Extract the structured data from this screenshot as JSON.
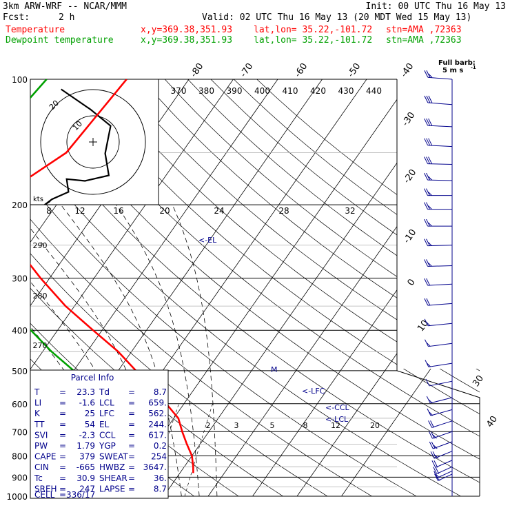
{
  "header": {
    "model": "3km ARW-WRF -- NCAR/MMM",
    "init": "Init: 00 UTC Thu 16 May 13",
    "fcst_label": "Fcst:",
    "fcst_value": "2 h",
    "valid": "Valid: 02 UTC Thu 16 May 13 (20 MDT Wed 15 May 13)",
    "temp_line": {
      "name": "Temperature",
      "xy": "x,y=369.38,351.93",
      "latlon": "lat,lon= 35.22,-101.72",
      "stn": "stn=AMA ,72363"
    },
    "dew_line": {
      "name": "Dewpoint temperature",
      "xy": "x,y=369.38,351.93",
      "latlon": "lat,lon= 35.22,-101.72",
      "stn": "stn=AMA ,72363"
    },
    "barb_note_1": "Full barb:",
    "barb_note_2": "5 m s",
    "barb_note_sup": "-1"
  },
  "colors": {
    "temperature": "#ff0000",
    "dewpoint": "#00a000",
    "parcel": "#00008b",
    "isobar": "#000000",
    "grid_gray": "#b0b0b0"
  },
  "chart_data": {
    "type": "line",
    "diagram": "skew-T log-p",
    "pressure_levels": [
      100,
      200,
      300,
      400,
      500,
      600,
      700,
      800,
      900,
      1000
    ],
    "pressure_labels": [
      "100",
      "200",
      "300",
      "400",
      "500",
      "600",
      "700",
      "800",
      "900",
      "1000"
    ],
    "isotherm_labels_top": [
      "-80",
      "-70",
      "-60",
      "-50",
      "-40"
    ],
    "isotherm_labels_right": [
      "-30",
      "-20",
      "-10",
      "0",
      "10",
      "30",
      "40"
    ],
    "theta_e_labels": [
      "370",
      "380",
      "390",
      "400",
      "410",
      "420",
      "430",
      "440"
    ],
    "wind_speed_labels": [
      "8",
      "12",
      "16",
      "20",
      "24",
      "28",
      "32"
    ],
    "wind_speed_unit": "kts",
    "dry_adiabat_labels": [
      "290",
      "280",
      "270"
    ],
    "mixing_ratio_labels": [
      "2",
      "3",
      "5",
      "8",
      "12",
      "20"
    ],
    "annotations": [
      "<-EL",
      "<-LFC",
      "<-CCL",
      "<-LCL",
      "M"
    ],
    "series": [
      {
        "name": "Temperature",
        "p": [
          100,
          150,
          175,
          200,
          250,
          300,
          350,
          400,
          450,
          500,
          550,
          600,
          650,
          700,
          750,
          800,
          850,
          880
        ],
        "t": [
          -54,
          -56,
          -61,
          -62,
          -53,
          -42,
          -32,
          -22,
          -13,
          -6,
          0,
          6,
          11,
          14,
          17,
          20,
          22,
          23
        ]
      },
      {
        "name": "Dewpoint temperature",
        "p": [
          100,
          150,
          175,
          200,
          250,
          280,
          300,
          320,
          350,
          400,
          450,
          500,
          550,
          600,
          650,
          700,
          750,
          800,
          850,
          880
        ],
        "t": [
          -72,
          -75,
          -74,
          -71,
          -67,
          -68,
          -69,
          -61,
          -48,
          -36,
          -28,
          -20,
          -15,
          -13,
          -11,
          -7,
          -2,
          2,
          7,
          9
        ]
      }
    ],
    "hodograph": {
      "ring_labels": [
        "20",
        "10"
      ],
      "points_kt": [
        [
          0,
          25
        ],
        [
          16,
          14
        ],
        [
          27,
          5
        ],
        [
          24,
          -10
        ],
        [
          26,
          -22
        ],
        [
          13,
          -25
        ],
        [
          3,
          -24
        ],
        [
          4,
          -31
        ],
        [
          -5,
          -35
        ],
        [
          -9,
          -38
        ],
        [
          -6,
          -36
        ]
      ]
    },
    "winds_kt": [
      {
        "p": 100,
        "dir": 285,
        "spd": 27
      },
      {
        "p": 115,
        "dir": 285,
        "spd": 30
      },
      {
        "p": 130,
        "dir": 280,
        "spd": 32
      },
      {
        "p": 145,
        "dir": 280,
        "spd": 33
      },
      {
        "p": 160,
        "dir": 275,
        "spd": 30
      },
      {
        "p": 175,
        "dir": 275,
        "spd": 28
      },
      {
        "p": 190,
        "dir": 270,
        "spd": 26
      },
      {
        "p": 205,
        "dir": 270,
        "spd": 26
      },
      {
        "p": 225,
        "dir": 270,
        "spd": 27
      },
      {
        "p": 250,
        "dir": 265,
        "spd": 27
      },
      {
        "p": 280,
        "dir": 265,
        "spd": 25
      },
      {
        "p": 310,
        "dir": 260,
        "spd": 22
      },
      {
        "p": 345,
        "dir": 255,
        "spd": 20
      },
      {
        "p": 385,
        "dir": 250,
        "spd": 18
      },
      {
        "p": 430,
        "dir": 245,
        "spd": 16
      },
      {
        "p": 480,
        "dir": 240,
        "spd": 14
      },
      {
        "p": 530,
        "dir": 230,
        "spd": 12
      },
      {
        "p": 580,
        "dir": 220,
        "spd": 14
      },
      {
        "p": 620,
        "dir": 215,
        "spd": 17
      },
      {
        "p": 660,
        "dir": 205,
        "spd": 20
      },
      {
        "p": 700,
        "dir": 200,
        "spd": 25
      },
      {
        "p": 740,
        "dir": 195,
        "spd": 28
      },
      {
        "p": 780,
        "dir": 185,
        "spd": 25
      },
      {
        "p": 820,
        "dir": 175,
        "spd": 22
      },
      {
        "p": 850,
        "dir": 165,
        "spd": 20
      },
      {
        "p": 870,
        "dir": 160,
        "spd": 18
      },
      {
        "p": 885,
        "dir": 155,
        "spd": 15
      }
    ]
  },
  "parcel_info": {
    "title": "Parcel Info",
    "rows": [
      [
        "T",
        "23.3",
        "Td",
        "8.7"
      ],
      [
        "LI",
        "-1.6",
        "LCL",
        "659."
      ],
      [
        "K",
        "25",
        "LFC",
        "562."
      ],
      [
        "TT",
        "54",
        "EL",
        "244."
      ],
      [
        "SVI",
        "-2.3",
        "CCL",
        "617."
      ],
      [
        "PW",
        "1.79",
        "YGP",
        "0.2"
      ],
      [
        "CAPE",
        "379",
        "SWEAT",
        "254"
      ],
      [
        "CIN",
        "-665",
        "HWBZ",
        "3647."
      ],
      [
        "Tc",
        "30.9",
        "SHEAR",
        "36."
      ],
      [
        "SREH",
        "247",
        "LAPSE",
        "8.7"
      ]
    ],
    "cell_label": "CELL",
    "cell_value": "336/17"
  }
}
